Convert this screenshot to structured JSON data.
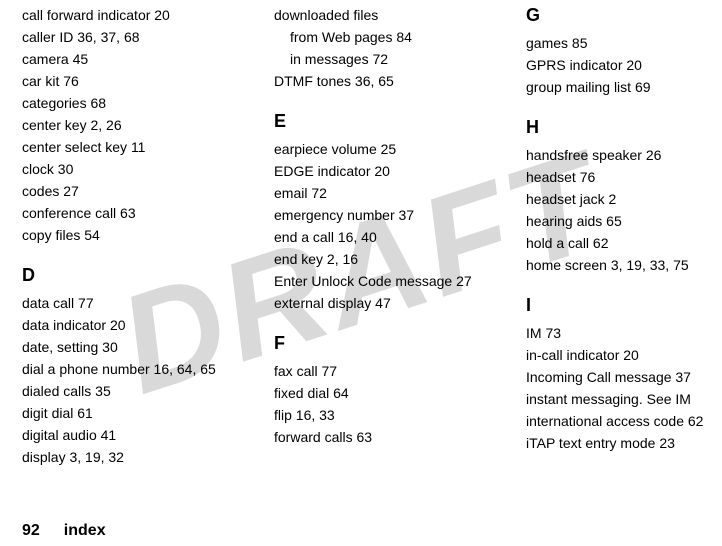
{
  "watermark": "DRAFT",
  "footer": {
    "page_number": "92",
    "section": "index"
  },
  "columns": [
    {
      "blocks": [
        {
          "type": "entries",
          "entries": [
            "call forward indicator  20",
            "caller ID  36, 37, 68",
            "camera  45",
            "car kit  76",
            "categories  68",
            "center key  2, 26",
            "center select key  11",
            "clock  30",
            "codes  27",
            "conference call  63",
            "copy files  54"
          ]
        },
        {
          "type": "heading",
          "text": "D"
        },
        {
          "type": "entries",
          "entries": [
            "data call  77",
            "data indicator  20",
            "date, setting  30",
            "dial a phone number  16, 64, 65",
            "dialed calls  35",
            "digit dial  61",
            "digital audio  41",
            "display  3, 19, 32"
          ]
        }
      ]
    },
    {
      "blocks": [
        {
          "type": "entries",
          "entries": [
            "downloaded files"
          ]
        },
        {
          "type": "entries_indent",
          "entries": [
            "from Web pages  84",
            "in messages  72"
          ]
        },
        {
          "type": "entries",
          "entries": [
            "DTMF tones  36, 65"
          ]
        },
        {
          "type": "heading",
          "text": "E"
        },
        {
          "type": "entries",
          "entries": [
            "earpiece volume  25",
            "EDGE indicator  20",
            "email  72",
            "emergency number  37",
            "end a call  16, 40",
            "end key  2, 16",
            "Enter Unlock Code message  27",
            "external display  47"
          ]
        },
        {
          "type": "heading",
          "text": "F"
        },
        {
          "type": "entries",
          "entries": [
            "fax call  77",
            "fixed dial  64",
            "flip  16, 33",
            "forward calls  63"
          ]
        }
      ]
    },
    {
      "blocks": [
        {
          "type": "heading_first",
          "text": "G"
        },
        {
          "type": "entries",
          "entries": [
            "games  85",
            "GPRS indicator  20",
            "group mailing list  69"
          ]
        },
        {
          "type": "heading",
          "text": "H"
        },
        {
          "type": "entries",
          "entries": [
            "handsfree speaker  26",
            "headset  76",
            "headset jack  2",
            "hearing aids  65",
            "hold a call  62",
            "home screen  3, 19, 33, 75"
          ]
        },
        {
          "type": "heading",
          "text": "I"
        },
        {
          "type": "entries",
          "entries": [
            "IM  73",
            "in-call indicator  20",
            "Incoming Call message  37",
            "instant messaging. See IM",
            "international access code  62",
            "iTAP text entry mode  23"
          ]
        }
      ]
    }
  ]
}
